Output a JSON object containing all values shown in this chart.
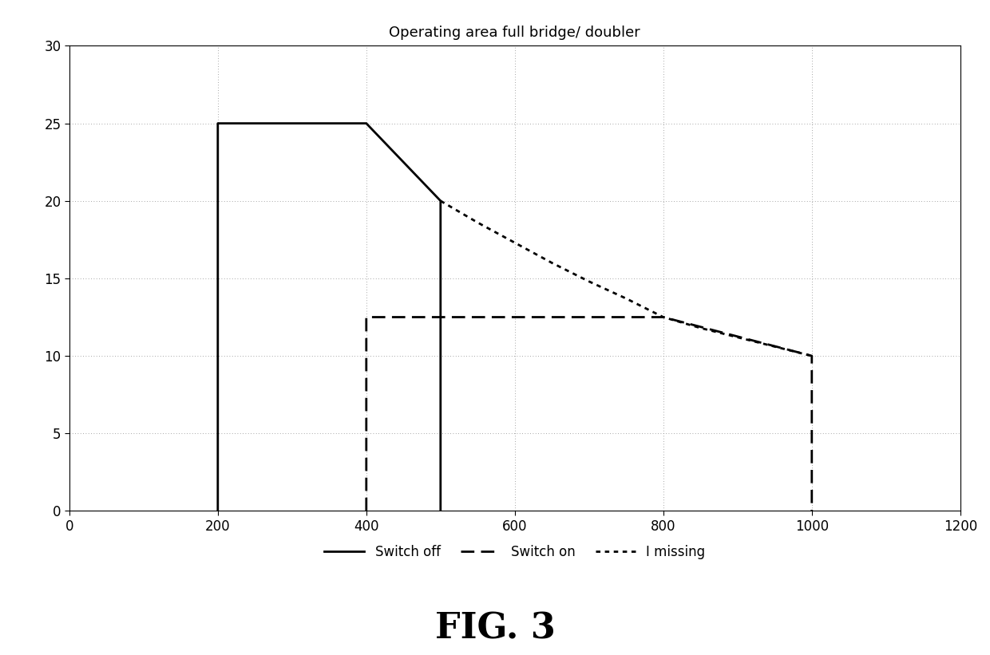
{
  "title": "Operating area full bridge/ doubler",
  "xlim": [
    0,
    1200
  ],
  "ylim": [
    0,
    30
  ],
  "xticks": [
    0,
    200,
    400,
    600,
    800,
    1000,
    1200
  ],
  "yticks": [
    0,
    5,
    10,
    15,
    20,
    25,
    30
  ],
  "switch_off": {
    "x": [
      200,
      200,
      400,
      500,
      500
    ],
    "y": [
      0,
      25,
      25,
      20,
      0
    ],
    "color": "#000000",
    "linewidth": 2.0,
    "label": "Switch off"
  },
  "switch_on": {
    "x": [
      400,
      400,
      800,
      1000,
      1000
    ],
    "y": [
      0,
      12.5,
      12.5,
      10,
      0
    ],
    "color": "#000000",
    "linewidth": 2.0,
    "label": "Switch on"
  },
  "i_missing": {
    "x": [
      500,
      550,
      600,
      650,
      700,
      750,
      800,
      850,
      900,
      950,
      1000
    ],
    "y": [
      20,
      18.6,
      17.3,
      16.0,
      14.8,
      13.7,
      12.5,
      11.8,
      11.2,
      10.6,
      10.0
    ],
    "color": "#000000",
    "linewidth": 2.0,
    "label": "I missing"
  },
  "fig_label": "FIG. 3",
  "background_color": "#ffffff",
  "grid_color": "#888888",
  "title_fontsize": 13,
  "tick_fontsize": 12,
  "legend_fontsize": 12,
  "fig_label_fontsize": 32
}
